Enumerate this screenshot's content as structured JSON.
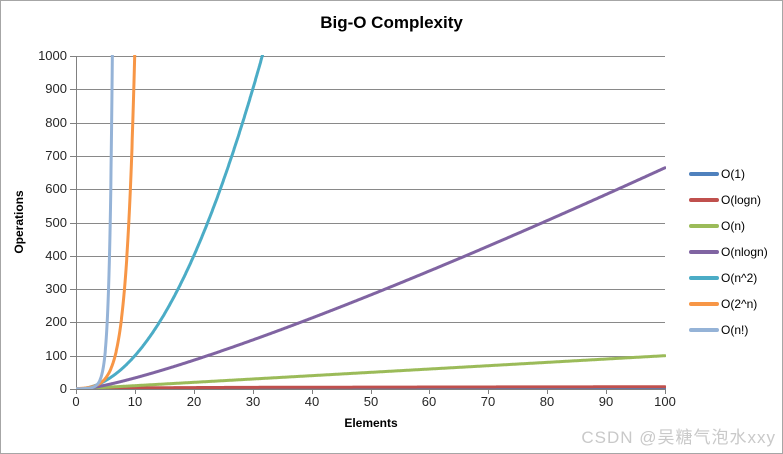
{
  "watermark": "CSDN @吴糖气泡水xxy",
  "colors": {
    "background": "#ffffff",
    "border": "#a6a6a6",
    "gridline": "#898989",
    "axis": "#808080",
    "tick_label": "#262626",
    "watermark": "#c9c9c9"
  },
  "chart_data": {
    "type": "line",
    "title": "Big-O Complexity",
    "xlabel": "Elements",
    "ylabel": "Operations",
    "xlim": [
      0,
      100
    ],
    "ylim": [
      0,
      1000
    ],
    "x_ticks": [
      0,
      10,
      20,
      30,
      40,
      50,
      60,
      70,
      80,
      90,
      100
    ],
    "y_ticks": [
      0,
      100,
      200,
      300,
      400,
      500,
      600,
      700,
      800,
      900,
      1000
    ],
    "grid": "horizontal",
    "legend_position": "right",
    "x_samples": [
      1,
      2,
      3,
      4,
      5,
      6,
      7,
      8,
      9,
      10,
      20,
      30,
      40,
      50,
      60,
      70,
      80,
      90,
      100
    ],
    "series": [
      {
        "name": "O(1)",
        "color": "#4F81BD",
        "formula": "1",
        "values": [
          1,
          1,
          1,
          1,
          1,
          1,
          1,
          1,
          1,
          1,
          1,
          1,
          1,
          1,
          1,
          1,
          1,
          1,
          1
        ]
      },
      {
        "name": "O(logn)",
        "color": "#C0504D",
        "formula": "log2(n)",
        "values": [
          0,
          1,
          1.58,
          2,
          2.32,
          2.58,
          2.81,
          3,
          3.17,
          3.32,
          4.32,
          4.91,
          5.32,
          5.64,
          5.91,
          6.13,
          6.32,
          6.49,
          6.64
        ]
      },
      {
        "name": "O(n)",
        "color": "#9BBB59",
        "formula": "n",
        "values": [
          1,
          2,
          3,
          4,
          5,
          6,
          7,
          8,
          9,
          10,
          20,
          30,
          40,
          50,
          60,
          70,
          80,
          90,
          100
        ]
      },
      {
        "name": "O(nlogn)",
        "color": "#8064A2",
        "formula": "n*log2(n)",
        "values": [
          0,
          2,
          4.75,
          8,
          11.61,
          15.51,
          19.65,
          24,
          28.53,
          33.22,
          86.44,
          147.21,
          212.88,
          282.19,
          354.41,
          429.05,
          505.75,
          584.26,
          664.39
        ]
      },
      {
        "name": "O(n^2)",
        "color": "#4BACC6",
        "formula": "n^2",
        "values": [
          1,
          4,
          9,
          16,
          25,
          36,
          49,
          64,
          81,
          100,
          400,
          900,
          1600,
          2500,
          3600,
          4900,
          6400,
          8100,
          10000
        ]
      },
      {
        "name": "O(2^n)",
        "color": "#F79646",
        "formula": "2^n",
        "values": [
          2,
          4,
          8,
          16,
          32,
          64,
          128,
          256,
          512,
          1024,
          null,
          null,
          null,
          null,
          null,
          null,
          null,
          null,
          null
        ]
      },
      {
        "name": "O(n!)",
        "color": "#95B3D7",
        "formula": "n!",
        "values": [
          1,
          2,
          6,
          24,
          120,
          720,
          5040,
          40320,
          362880,
          3628800,
          null,
          null,
          null,
          null,
          null,
          null,
          null,
          null,
          null
        ]
      }
    ]
  }
}
